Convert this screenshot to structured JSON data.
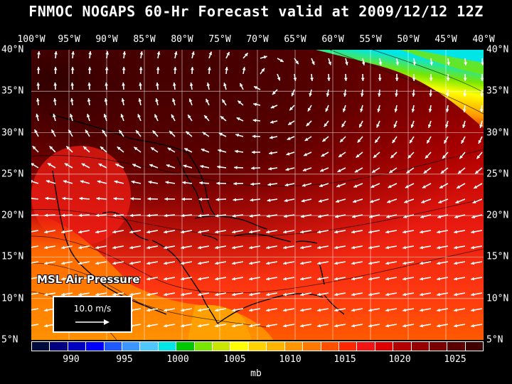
{
  "title": "FNMOC NOGAPS 60-Hr Forecast valid at 2009/12/12 12Z",
  "longitudes": [
    "100°W",
    "95°W",
    "90°W",
    "85°W",
    "80°W",
    "75°W",
    "70°W",
    "65°W",
    "60°W",
    "55°W",
    "50°W",
    "45°W",
    "40°W"
  ],
  "latitudes": [
    "40°N",
    "35°N",
    "30°N",
    "25°N",
    "20°N",
    "15°N",
    "10°N",
    "5°N"
  ],
  "overlay_label": "MSL Air Pressure",
  "scale_label": "10.0 m/s",
  "colorbar": {
    "ticks": [
      "990",
      "995",
      "1000",
      "1005",
      "1010",
      "1015",
      "1020",
      "1025"
    ],
    "units": "mb",
    "colors": [
      "#000a3c",
      "#000080",
      "#0000c0",
      "#0000ff",
      "#1e5aff",
      "#3c96ff",
      "#50c8ff",
      "#00e6e6",
      "#00c800",
      "#78e600",
      "#c8e600",
      "#ffff00",
      "#ffd200",
      "#ffb400",
      "#ff9600",
      "#ff7800",
      "#ff5000",
      "#ff2800",
      "#f01414",
      "#dc0000",
      "#b40000",
      "#960000",
      "#780000",
      "#5a0000",
      "#400000"
    ]
  }
}
